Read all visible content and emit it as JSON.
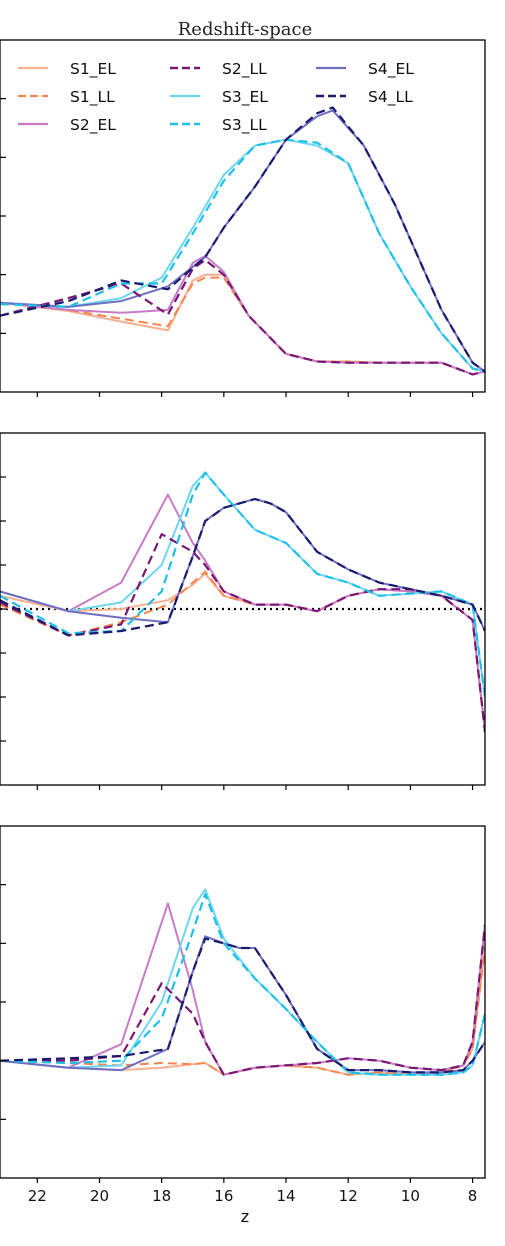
{
  "chart_data": {
    "type": "line",
    "title": "Redshift-space",
    "xlabel": "z",
    "x_ticks": [
      22,
      20,
      18,
      16,
      14,
      12,
      10,
      8
    ],
    "xlim": [
      23.2,
      7.6
    ],
    "legend_position": "top",
    "legend": [
      "S1_EL",
      "S2_LL",
      "S4_EL",
      "S1_LL",
      "S3_EL",
      "S4_LL",
      "S2_EL",
      "S3_LL"
    ],
    "styles": {
      "S1_EL": {
        "color": "#f9b090",
        "dash": "",
        "width": 2
      },
      "S1_LL": {
        "color": "#f4864e",
        "dash": "9 5",
        "width": 2
      },
      "S2_EL": {
        "color": "#c87bc8",
        "dash": "",
        "width": 2
      },
      "S2_LL": {
        "color": "#7a1774",
        "dash": "9 5",
        "width": 2.2
      },
      "S3_EL": {
        "color": "#6fd6f2",
        "dash": "",
        "width": 2
      },
      "S3_LL": {
        "color": "#1ec0ea",
        "dash": "9 5",
        "width": 2.2
      },
      "S4_EL": {
        "color": "#6f6ec0",
        "dash": "",
        "width": 2
      },
      "S4_LL": {
        "color": "#1a1a6e",
        "dash": "9 5",
        "width": 2.2
      }
    },
    "panels": [
      {
        "ylim": [
          0,
          6
        ],
        "hline": null,
        "series": [
          {
            "name": "S1_EL",
            "x": [
              23.2,
              21,
              19.3,
              17.8,
              17,
              16.6,
              16,
              15.2,
              14,
              13,
              12,
              11,
              10,
              9,
              8,
              7.6
            ],
            "y": [
              1.52,
              1.38,
              1.2,
              1.05,
              1.9,
              2.0,
              2.0,
              1.3,
              0.65,
              0.52,
              0.52,
              0.5,
              0.5,
              0.5,
              0.3,
              0.35
            ]
          },
          {
            "name": "S1_LL",
            "x": [
              23.2,
              21,
              19.3,
              17.8,
              17,
              16.6,
              16,
              15.2,
              14,
              13,
              12,
              11,
              10,
              9,
              8,
              7.6
            ],
            "y": [
              1.52,
              1.4,
              1.25,
              1.12,
              1.85,
              1.95,
              1.95,
              1.3,
              0.65,
              0.52,
              0.52,
              0.5,
              0.5,
              0.5,
              0.3,
              0.35
            ]
          },
          {
            "name": "S2_EL",
            "x": [
              23.2,
              21,
              19.3,
              17.8,
              17,
              16.6,
              16,
              15.2,
              14,
              13,
              12,
              11,
              10,
              9,
              8,
              7.6
            ],
            "y": [
              1.52,
              1.4,
              1.35,
              1.4,
              2.2,
              2.32,
              2.05,
              1.3,
              0.65,
              0.52,
              0.5,
              0.5,
              0.5,
              0.5,
              0.3,
              0.35
            ]
          },
          {
            "name": "S2_LL",
            "x": [
              23.2,
              21,
              19.3,
              17.8,
              17,
              16.6,
              16,
              15.2,
              14,
              13,
              12,
              11,
              10,
              9,
              8,
              7.6
            ],
            "y": [
              1.3,
              1.6,
              1.85,
              1.32,
              2.1,
              2.25,
              2.0,
              1.3,
              0.65,
              0.52,
              0.5,
              0.5,
              0.5,
              0.5,
              0.3,
              0.35
            ]
          },
          {
            "name": "S3_EL",
            "x": [
              23.2,
              21,
              19.3,
              18,
              17,
              16,
              15,
              14,
              13,
              12,
              11,
              10,
              9,
              8,
              7.6
            ],
            "y": [
              1.52,
              1.45,
              1.6,
              1.95,
              2.8,
              3.7,
              4.2,
              4.3,
              4.2,
              3.9,
              2.7,
              1.8,
              1.0,
              0.4,
              0.35
            ]
          },
          {
            "name": "S3_LL",
            "x": [
              23.2,
              21,
              19.3,
              18,
              17,
              16,
              15,
              14,
              13,
              12,
              11,
              10,
              9,
              8,
              7.6
            ],
            "y": [
              1.5,
              1.45,
              1.85,
              1.85,
              2.7,
              3.6,
              4.2,
              4.3,
              4.25,
              3.9,
              2.7,
              1.8,
              1.0,
              0.4,
              0.35
            ]
          },
          {
            "name": "S4_EL",
            "x": [
              23.2,
              21,
              19.3,
              17.8,
              16.6,
              16,
              15,
              14,
              13,
              12.5,
              11.5,
              10.5,
              10,
              9,
              8,
              7.6
            ],
            "y": [
              1.52,
              1.45,
              1.55,
              1.8,
              2.3,
              2.8,
              3.5,
              4.3,
              4.7,
              4.8,
              4.2,
              3.2,
              2.6,
              1.4,
              0.5,
              0.35
            ]
          },
          {
            "name": "S4_LL",
            "x": [
              23.2,
              21,
              19.3,
              17.8,
              16.6,
              16,
              15,
              14,
              13,
              12.5,
              11.5,
              10.5,
              10,
              9,
              8,
              7.6
            ],
            "y": [
              1.3,
              1.55,
              1.9,
              1.75,
              2.3,
              2.8,
              3.5,
              4.3,
              4.75,
              4.85,
              4.2,
              3.2,
              2.6,
              1.4,
              0.5,
              0.35
            ]
          }
        ]
      },
      {
        "ylim": [
          -4,
          4
        ],
        "hline": 0,
        "series": [
          {
            "name": "S1_EL",
            "x": [
              23.2,
              21,
              19.3,
              17.8,
              17,
              16.6,
              16,
              15,
              14,
              13,
              12,
              11,
              10,
              9,
              8,
              7.6
            ],
            "y": [
              0.3,
              -0.05,
              0.0,
              0.2,
              0.55,
              0.8,
              0.3,
              0.1,
              0.1,
              -0.05,
              0.3,
              0.45,
              0.4,
              0.3,
              -0.25,
              -2.8
            ]
          },
          {
            "name": "S1_LL",
            "x": [
              23.2,
              21,
              19.3,
              17.8,
              17,
              16.6,
              16,
              15,
              14,
              13,
              12,
              11,
              10,
              9,
              8,
              7.6
            ],
            "y": [
              0.1,
              -0.6,
              -0.3,
              0.1,
              0.6,
              0.85,
              0.3,
              0.1,
              0.1,
              -0.05,
              0.3,
              0.45,
              0.4,
              0.3,
              -0.25,
              -2.8
            ]
          },
          {
            "name": "S2_EL",
            "x": [
              23.2,
              21,
              19.3,
              17.8,
              17,
              16.6,
              16,
              15,
              14,
              13,
              12,
              11,
              10,
              9,
              8,
              7.6
            ],
            "y": [
              0.4,
              -0.05,
              0.6,
              2.6,
              1.5,
              1.1,
              0.4,
              0.1,
              0.1,
              -0.05,
              0.3,
              0.45,
              0.4,
              0.3,
              -0.25,
              -2.8
            ]
          },
          {
            "name": "S2_LL",
            "x": [
              23.2,
              21,
              19.3,
              18,
              17,
              16.6,
              16,
              15,
              14,
              13,
              12,
              11,
              10,
              9,
              8,
              7.6
            ],
            "y": [
              0.15,
              -0.6,
              -0.35,
              1.7,
              1.3,
              1.0,
              0.4,
              0.1,
              0.1,
              -0.05,
              0.3,
              0.45,
              0.45,
              0.3,
              -0.25,
              -2.8
            ]
          },
          {
            "name": "S3_EL",
            "x": [
              23.2,
              21,
              19.3,
              18,
              17,
              16.6,
              16,
              15,
              14,
              13,
              12,
              11,
              10,
              9,
              8,
              7.6
            ],
            "y": [
              0.4,
              -0.05,
              0.15,
              1.0,
              2.8,
              3.1,
              2.6,
              1.8,
              1.5,
              0.8,
              0.6,
              0.3,
              0.35,
              0.4,
              0.1,
              -2.0
            ]
          },
          {
            "name": "S3_LL",
            "x": [
              23.2,
              21,
              19.3,
              18,
              17,
              16.6,
              16,
              15,
              14,
              13,
              12,
              11,
              10,
              9,
              8,
              7.6
            ],
            "y": [
              0.3,
              -0.55,
              -0.5,
              0.4,
              2.6,
              3.1,
              2.6,
              1.8,
              1.5,
              0.8,
              0.6,
              0.3,
              0.35,
              0.4,
              0.1,
              -2.0
            ]
          },
          {
            "name": "S4_EL",
            "x": [
              23.2,
              21,
              19.3,
              17.8,
              17,
              16.6,
              16,
              15,
              14.5,
              14,
              13,
              12,
              11,
              10,
              9,
              8,
              7.6
            ],
            "y": [
              0.4,
              -0.05,
              -0.2,
              -0.3,
              1.2,
              2.0,
              2.3,
              2.5,
              2.4,
              2.2,
              1.3,
              0.9,
              0.6,
              0.45,
              0.3,
              0.1,
              -0.5
            ]
          },
          {
            "name": "S4_LL",
            "x": [
              23.2,
              21,
              19.3,
              17.8,
              17,
              16.6,
              16,
              15,
              14.5,
              14,
              13,
              12,
              11,
              10,
              9,
              8,
              7.6
            ],
            "y": [
              0.2,
              -0.6,
              -0.5,
              -0.3,
              1.2,
              2.0,
              2.3,
              2.5,
              2.4,
              2.2,
              1.3,
              0.9,
              0.6,
              0.45,
              0.3,
              0.1,
              -0.5
            ]
          }
        ]
      },
      {
        "ylim": [
          -5,
          10
        ],
        "hline": null,
        "series": [
          {
            "name": "S1_EL",
            "x": [
              23.2,
              21,
              19.3,
              18,
              17,
              16.6,
              16,
              15,
              14,
              13,
              12,
              11,
              10,
              9,
              8.3,
              8,
              7.6
            ],
            "y": [
              0.0,
              -0.3,
              -0.4,
              -0.3,
              -0.15,
              -0.1,
              -0.6,
              -0.3,
              -0.2,
              -0.3,
              -0.6,
              -0.5,
              -0.6,
              -0.5,
              -0.2,
              0.5,
              4.8
            ]
          },
          {
            "name": "S1_LL",
            "x": [
              23.2,
              21,
              19.3,
              18,
              17,
              16.6,
              16,
              15,
              14,
              13,
              12,
              11,
              10,
              9,
              8.3,
              8,
              7.6
            ],
            "y": [
              0.0,
              -0.1,
              -0.2,
              -0.1,
              -0.15,
              -0.1,
              -0.6,
              -0.3,
              -0.2,
              -0.3,
              -0.6,
              -0.5,
              -0.6,
              -0.5,
              -0.2,
              0.5,
              4.8
            ]
          },
          {
            "name": "S2_EL",
            "x": [
              23.2,
              21,
              19.3,
              17.8,
              17,
              16.6,
              16,
              15,
              14,
              13,
              12,
              11,
              10,
              9,
              8.3,
              8,
              7.6
            ],
            "y": [
              0.0,
              -0.3,
              0.7,
              6.7,
              3.0,
              0.8,
              -0.6,
              -0.3,
              -0.2,
              -0.1,
              0.1,
              0.0,
              -0.3,
              -0.4,
              -0.2,
              0.8,
              5.8
            ]
          },
          {
            "name": "S2_LL",
            "x": [
              23.2,
              21,
              19.3,
              18,
              17,
              16.6,
              16,
              15,
              14,
              13,
              12,
              11,
              10,
              9,
              8.3,
              8,
              7.6
            ],
            "y": [
              0.0,
              0.0,
              0.2,
              3.3,
              2.0,
              0.8,
              -0.6,
              -0.3,
              -0.2,
              -0.1,
              0.1,
              0.0,
              -0.3,
              -0.4,
              -0.2,
              0.8,
              5.8
            ]
          },
          {
            "name": "S3_EL",
            "x": [
              23.2,
              21,
              19.3,
              18,
              17,
              16.6,
              16,
              15,
              14,
              13,
              12,
              11,
              10,
              9,
              8.3,
              8,
              7.6
            ],
            "y": [
              0.0,
              -0.3,
              -0.2,
              2.5,
              6.5,
              7.3,
              5.2,
              3.5,
              2.2,
              0.8,
              -0.5,
              -0.6,
              -0.6,
              -0.6,
              -0.5,
              -0.2,
              2.0
            ]
          },
          {
            "name": "S3_LL",
            "x": [
              23.2,
              21,
              19.3,
              18,
              17,
              16.6,
              16,
              15,
              14,
              13,
              12,
              11,
              10,
              9,
              8.3,
              8,
              7.6
            ],
            "y": [
              0.0,
              -0.1,
              0.0,
              1.8,
              5.5,
              7.1,
              5.0,
              3.5,
              2.2,
              0.8,
              -0.5,
              -0.6,
              -0.6,
              -0.6,
              -0.5,
              -0.2,
              2.0
            ]
          },
          {
            "name": "S4_EL",
            "x": [
              23.2,
              21,
              19.3,
              17.8,
              17,
              16.6,
              16,
              15.5,
              15,
              14,
              13,
              12,
              11,
              10,
              9,
              8.3,
              8,
              7.6
            ],
            "y": [
              0.0,
              -0.3,
              -0.4,
              0.5,
              3.8,
              5.3,
              5.0,
              4.8,
              4.8,
              2.8,
              0.5,
              -0.4,
              -0.4,
              -0.5,
              -0.5,
              -0.4,
              0.0,
              0.8
            ]
          },
          {
            "name": "S4_LL",
            "x": [
              23.2,
              21,
              19.3,
              17.8,
              17,
              16.6,
              16,
              15.5,
              15,
              14,
              13,
              12,
              11,
              10,
              9,
              8.3,
              8,
              7.6
            ],
            "y": [
              0.0,
              0.1,
              0.2,
              0.5,
              3.8,
              5.2,
              5.0,
              4.8,
              4.8,
              2.8,
              0.5,
              -0.4,
              -0.4,
              -0.5,
              -0.5,
              -0.4,
              0.0,
              0.8
            ]
          }
        ]
      }
    ]
  }
}
